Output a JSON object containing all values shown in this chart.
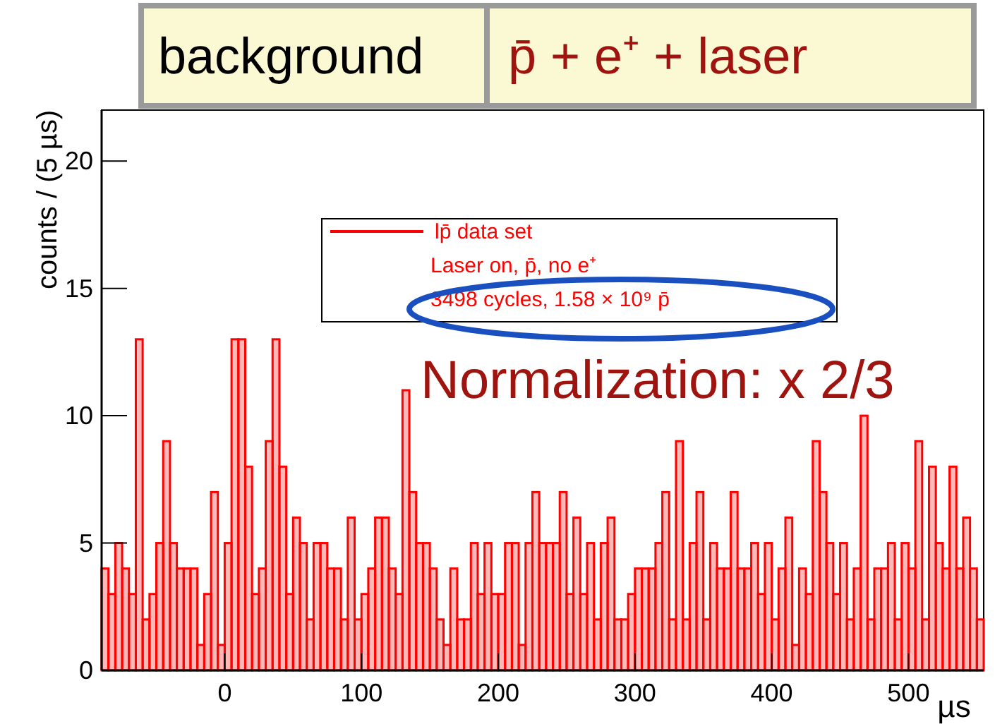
{
  "chart_data": {
    "type": "histogram",
    "xlabel": "µs",
    "ylabel": "counts / (5 µs)",
    "bins": [
      -90,
      -85,
      -80,
      -75,
      -70,
      -65,
      -60,
      -55,
      -50,
      -45,
      -40,
      -35,
      -30,
      -25,
      -20,
      -15,
      -10,
      -5,
      0,
      5,
      10,
      15,
      20,
      25,
      30,
      35,
      40,
      45,
      50,
      55,
      60,
      65,
      70,
      75,
      80,
      85,
      90,
      95,
      100,
      105,
      110,
      115,
      120,
      125,
      130,
      135,
      140,
      145,
      150,
      155,
      160,
      165,
      170,
      175,
      180,
      185,
      190,
      195,
      200,
      205,
      210,
      215,
      220,
      225,
      230,
      235,
      240,
      245,
      250,
      255,
      260,
      265,
      270,
      275,
      280,
      285,
      290,
      295,
      300,
      305,
      310,
      315,
      320,
      325,
      330,
      335,
      340,
      345,
      350,
      355,
      360,
      365,
      370,
      375,
      380,
      385,
      390,
      395,
      400,
      405,
      410,
      415,
      420,
      425,
      430,
      435,
      440,
      445,
      450,
      455,
      460,
      465,
      470,
      475,
      480,
      485,
      490,
      495,
      500,
      505,
      510,
      515,
      520,
      525,
      530,
      535,
      540,
      545,
      550,
      555
    ],
    "series": [
      {
        "name": "lp̄ data set",
        "color": "#ff0000",
        "values": [
          4,
          3,
          5,
          4,
          3,
          13,
          2,
          3,
          5,
          9,
          5,
          4,
          4,
          4,
          1,
          3,
          7,
          1,
          5,
          13,
          13,
          8,
          3,
          4,
          9,
          13,
          8,
          3,
          6,
          5,
          2,
          5,
          5,
          4,
          4,
          2,
          6,
          2,
          3,
          4,
          6,
          6,
          4,
          3,
          11,
          7,
          5,
          5,
          4,
          2,
          1,
          4,
          2,
          2,
          5,
          3,
          5,
          3,
          3,
          5,
          5,
          1,
          5,
          7,
          5,
          5,
          5,
          7,
          3,
          6,
          3,
          5,
          2,
          5,
          6,
          2,
          2,
          3,
          4,
          4,
          4,
          5,
          7,
          2,
          9,
          2,
          5,
          7,
          2,
          5,
          4,
          4,
          7,
          4,
          4,
          5,
          3,
          5,
          2,
          4,
          6,
          1,
          4,
          3,
          9,
          7,
          5,
          3,
          5,
          2,
          4,
          10,
          2,
          4,
          4,
          5,
          2,
          5,
          4,
          9,
          2,
          8,
          5,
          4,
          8,
          4,
          6,
          4,
          2
        ]
      }
    ],
    "xlim": [
      -90,
      555
    ],
    "xticks": [
      0,
      100,
      200,
      300,
      400,
      500
    ],
    "ylim": [
      0,
      22
    ],
    "yticks": [
      0,
      5,
      10,
      15,
      20
    ],
    "grid": false,
    "legend": "top",
    "annotations": [
      "background",
      "p̄ + e⁺ + laser",
      "Laser on, p̄, no e⁺",
      "3498 cycles, 1.58 × 10⁹ p̄",
      "Normalization: x 2/3"
    ]
  }
}
